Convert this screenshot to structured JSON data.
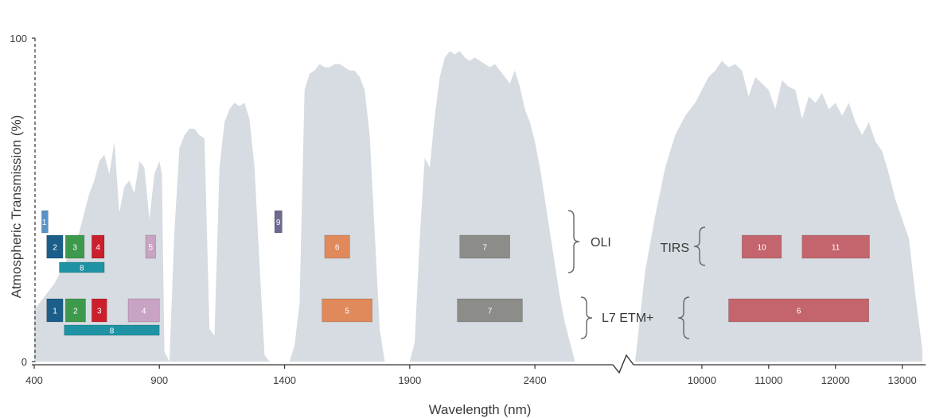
{
  "chart_data": {
    "type": "area",
    "xlabel": "Wavelength (nm)",
    "ylabel": "Atmospheric Transmission (%)",
    "ylim": [
      0,
      100
    ],
    "y_ticks": [
      "0",
      "100"
    ],
    "x_axis_broken": true,
    "x_ticks_left": [
      "400",
      "900",
      "1400",
      "1900",
      "2400"
    ],
    "x_ticks_right": [
      "10000",
      "11000",
      "12000",
      "13000"
    ],
    "transmission_left": {
      "x_nm": [
        400,
        420,
        450,
        480,
        500,
        520,
        540,
        560,
        580,
        600,
        620,
        640,
        660,
        680,
        700,
        720,
        740,
        760,
        780,
        800,
        820,
        840,
        860,
        880,
        900,
        910,
        920,
        940,
        960,
        980,
        1000,
        1020,
        1040,
        1060,
        1080,
        1100,
        1120,
        1140,
        1160,
        1180,
        1200,
        1220,
        1240,
        1260,
        1280,
        1300,
        1320,
        1340,
        1360,
        1380,
        1400,
        1420,
        1440,
        1460,
        1480,
        1500,
        1520,
        1540,
        1560,
        1580,
        1600,
        1620,
        1640,
        1660,
        1680,
        1700,
        1720,
        1740,
        1760,
        1780,
        1800,
        1820,
        1840,
        1860,
        1880,
        1900,
        1920,
        1940,
        1960,
        1980,
        2000,
        2020,
        2040,
        2060,
        2080,
        2100,
        2120,
        2140,
        2160,
        2180,
        2200,
        2220,
        2240,
        2260,
        2280,
        2300,
        2320,
        2340,
        2360,
        2380,
        2400,
        2420,
        2440,
        2460,
        2480,
        2500,
        2520,
        2560
      ],
      "y_percent": [
        16,
        18,
        21,
        24,
        27,
        30,
        33,
        36,
        40,
        46,
        52,
        56,
        62,
        64,
        58,
        68,
        46,
        54,
        56,
        52,
        62,
        60,
        44,
        58,
        62,
        58,
        3,
        0,
        40,
        66,
        70,
        72,
        72,
        70,
        69,
        10,
        8,
        60,
        74,
        78,
        80,
        79,
        80,
        75,
        60,
        30,
        2,
        0,
        0,
        0,
        0,
        0,
        5,
        18,
        84,
        89,
        90,
        92,
        91,
        91,
        92,
        92,
        91,
        90,
        90,
        88,
        84,
        70,
        40,
        10,
        0,
        0,
        0,
        0,
        0,
        0,
        6,
        38,
        63,
        60,
        76,
        88,
        94,
        96,
        95,
        96,
        94,
        93,
        94,
        93,
        92,
        91,
        92,
        90,
        88,
        86,
        90,
        85,
        78,
        74,
        68,
        60,
        50,
        40,
        30,
        20,
        12,
        0
      ]
    },
    "transmission_right": {
      "x_nm": [
        9000,
        9150,
        9300,
        9450,
        9600,
        9750,
        9900,
        10000,
        10100,
        10200,
        10300,
        10400,
        10500,
        10600,
        10700,
        10800,
        10900,
        11000,
        11100,
        11200,
        11300,
        11400,
        11500,
        11600,
        11700,
        11800,
        11900,
        12000,
        12100,
        12200,
        12300,
        12400,
        12500,
        12600,
        12700,
        12800,
        12900,
        13000,
        13100,
        13200,
        13300
      ],
      "y_percent": [
        0,
        28,
        45,
        60,
        70,
        76,
        80,
        84,
        88,
        90,
        93,
        91,
        92,
        90,
        82,
        88,
        86,
        84,
        78,
        87,
        85,
        84,
        75,
        82,
        80,
        83,
        78,
        80,
        76,
        80,
        74,
        70,
        74,
        68,
        65,
        58,
        50,
        44,
        38,
        20,
        4
      ]
    },
    "sensors": [
      {
        "label": "OLI",
        "row": "OLI",
        "bands": [
          {
            "label": "1",
            "start_nm": 430,
            "end_nm": 450,
            "color": "#5a93c8",
            "level": "top"
          },
          {
            "label": "2",
            "start_nm": 450,
            "end_nm": 515,
            "color": "#1b5e8a",
            "level": "mid"
          },
          {
            "label": "3",
            "start_nm": 525,
            "end_nm": 600,
            "color": "#3d9a4c",
            "level": "mid"
          },
          {
            "label": "4",
            "start_nm": 630,
            "end_nm": 680,
            "color": "#cc1f2c",
            "level": "mid"
          },
          {
            "label": "5",
            "start_nm": 845,
            "end_nm": 885,
            "color": "#c9a3c3",
            "level": "mid"
          },
          {
            "label": "8",
            "start_nm": 500,
            "end_nm": 680,
            "color": "#1f93a3",
            "level": "low"
          },
          {
            "label": "9",
            "start_nm": 1360,
            "end_nm": 1390,
            "color": "#6c6a8f",
            "level": "top"
          },
          {
            "label": "6",
            "start_nm": 1560,
            "end_nm": 1660,
            "color": "#e08a5c",
            "level": "mid"
          },
          {
            "label": "7",
            "start_nm": 2100,
            "end_nm": 2300,
            "color": "#8c8c88",
            "level": "mid"
          }
        ]
      },
      {
        "label": "TIRS",
        "row": "OLI",
        "bands": [
          {
            "label": "10",
            "start_nm": 10600,
            "end_nm": 11190,
            "color": "#c4656d",
            "level": "mid"
          },
          {
            "label": "11",
            "start_nm": 11500,
            "end_nm": 12510,
            "color": "#c4656d",
            "level": "mid"
          }
        ]
      },
      {
        "label": "L7 ETM+",
        "row": "ETM",
        "bands": [
          {
            "label": "1",
            "start_nm": 450,
            "end_nm": 515,
            "color": "#1b5e8a",
            "level": "mid"
          },
          {
            "label": "2",
            "start_nm": 525,
            "end_nm": 605,
            "color": "#3d9a4c",
            "level": "mid"
          },
          {
            "label": "3",
            "start_nm": 630,
            "end_nm": 690,
            "color": "#cc1f2c",
            "level": "mid"
          },
          {
            "label": "4",
            "start_nm": 775,
            "end_nm": 900,
            "color": "#c9a3c3",
            "level": "mid"
          },
          {
            "label": "8",
            "start_nm": 520,
            "end_nm": 900,
            "color": "#1f93a3",
            "level": "low"
          },
          {
            "label": "5",
            "start_nm": 1550,
            "end_nm": 1750,
            "color": "#e08a5c",
            "level": "mid"
          },
          {
            "label": "7",
            "start_nm": 2090,
            "end_nm": 2350,
            "color": "#8c8c88",
            "level": "mid"
          },
          {
            "label": "6",
            "start_nm": 10400,
            "end_nm": 12500,
            "color": "#c4656d",
            "level": "mid"
          }
        ]
      }
    ]
  }
}
